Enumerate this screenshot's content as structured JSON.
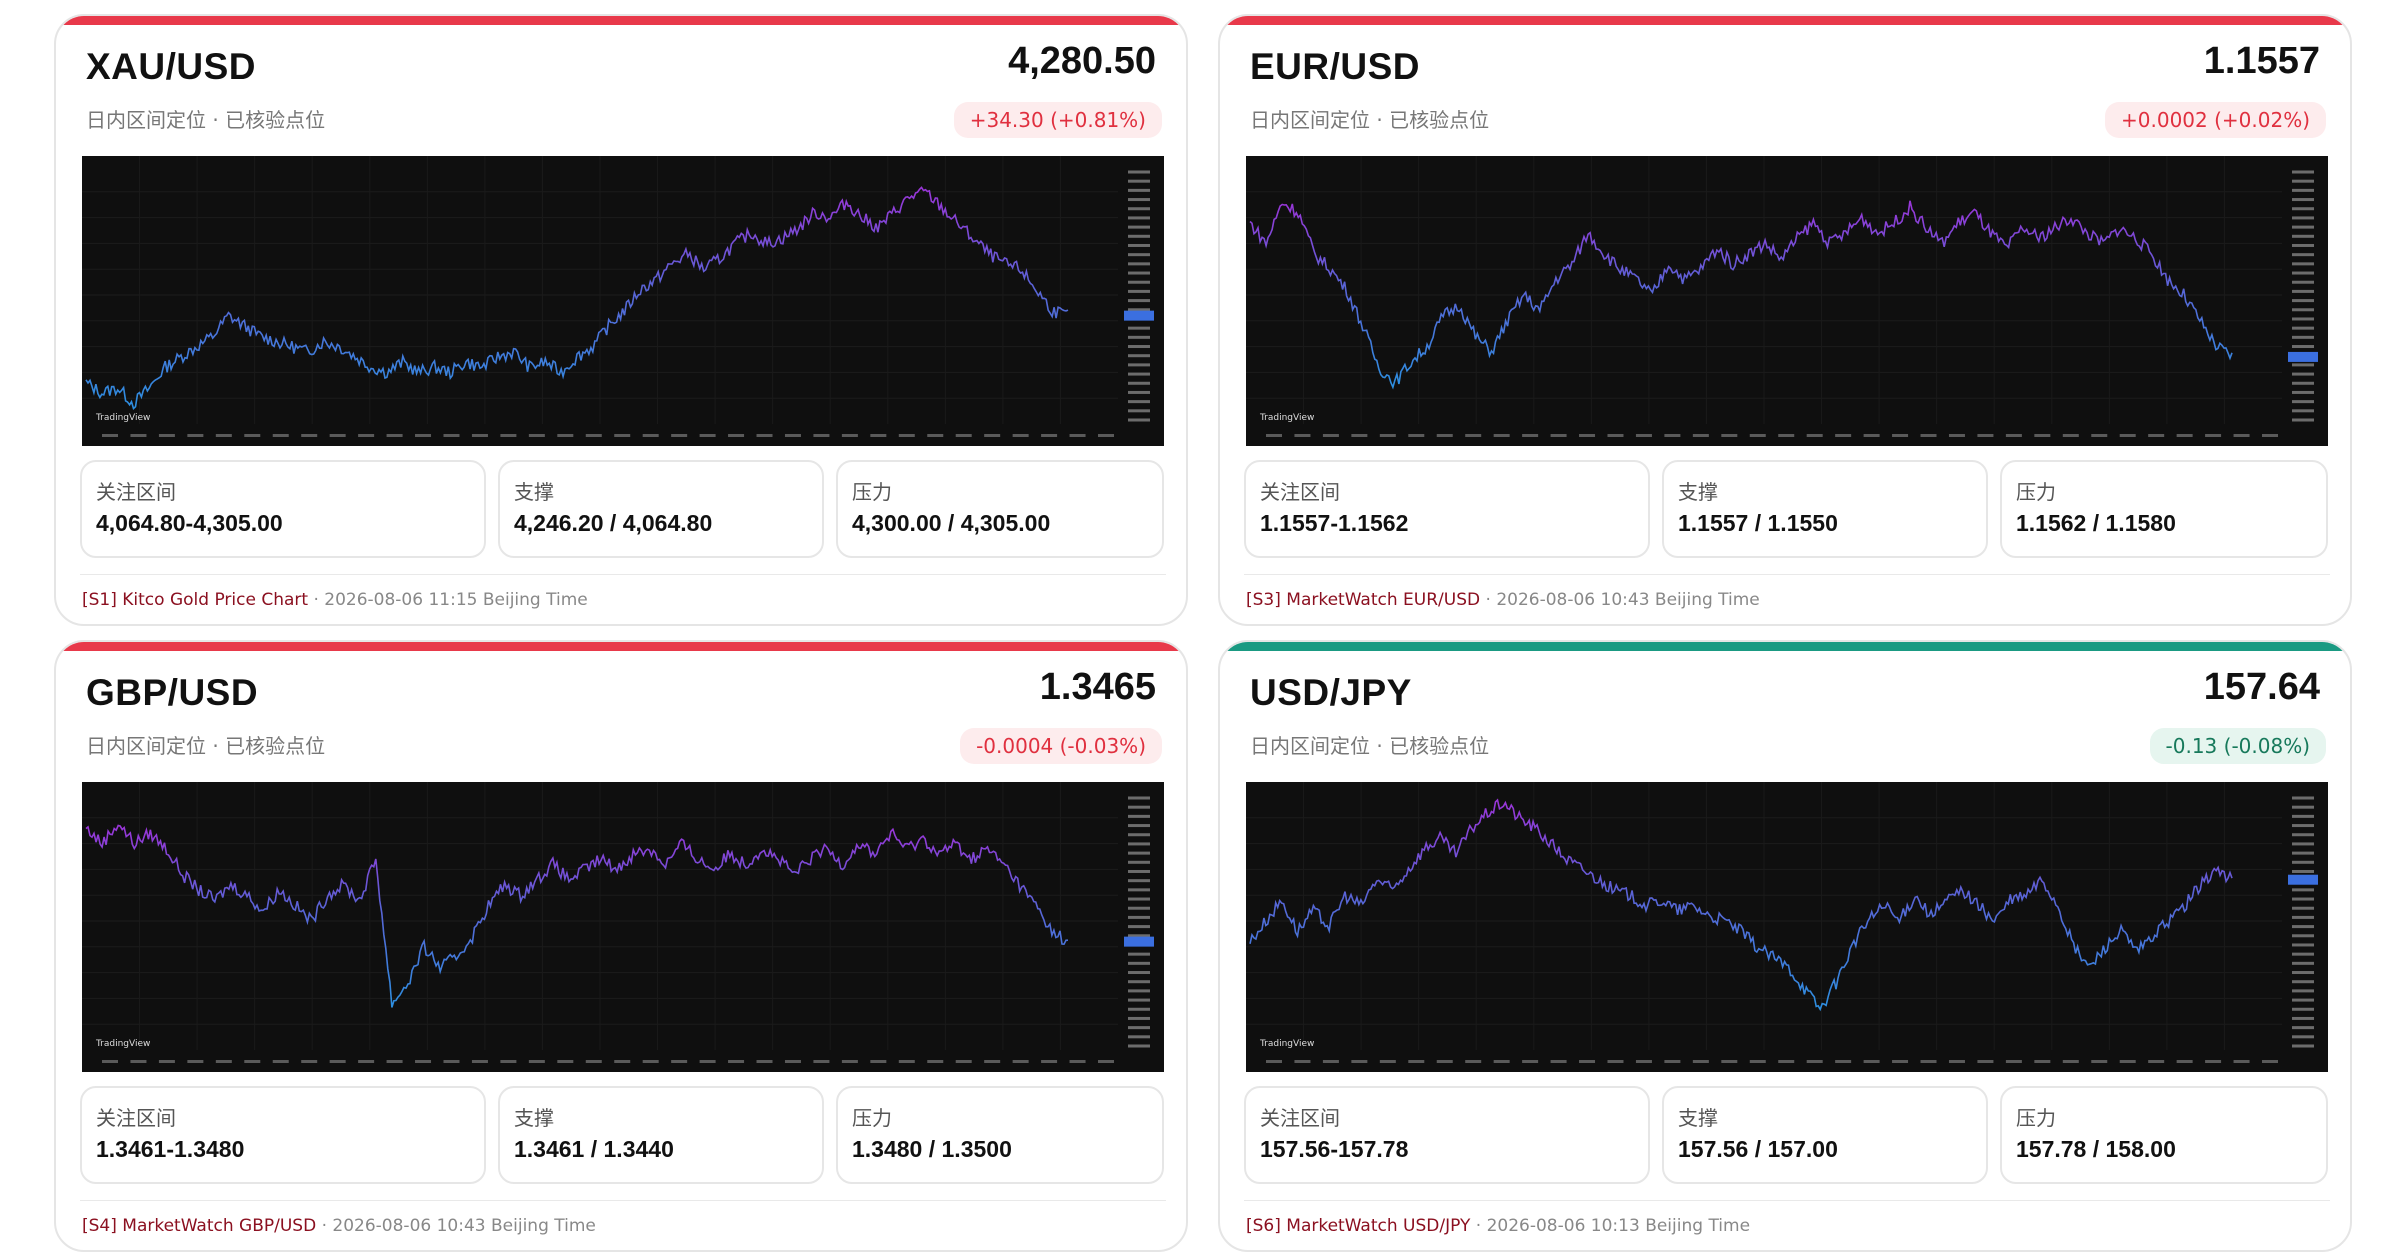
{
  "cards": [
    {
      "pair": "XAU/USD",
      "subtitle": "日内区间定位 · 已核验点位",
      "price": "4,280.50",
      "change": "+34.30 (+0.81%)",
      "change_dir": "negative-style",
      "accent": "#e8394a",
      "levels": [
        {
          "label": "关注区间",
          "value": "4,064.80-4,305.00"
        },
        {
          "label": "支撑",
          "value": "4,246.20 / 4,064.80"
        },
        {
          "label": "压力",
          "value": "4,300.00 / 4,305.00"
        }
      ],
      "source": {
        "tag": "[S1] Kitco Gold Price Chart",
        "sep": " · ",
        "time": "2026-08-06 11:15 Beijing Time"
      },
      "chart_data": {
        "type": "line",
        "logo": "TradingView",
        "series": [
          0.16,
          0.12,
          0.14,
          0.08,
          0.14,
          0.22,
          0.26,
          0.3,
          0.34,
          0.42,
          0.38,
          0.34,
          0.32,
          0.3,
          0.28,
          0.32,
          0.3,
          0.26,
          0.22,
          0.2,
          0.24,
          0.2,
          0.22,
          0.2,
          0.24,
          0.22,
          0.26,
          0.28,
          0.22,
          0.24,
          0.2,
          0.26,
          0.3,
          0.38,
          0.44,
          0.52,
          0.56,
          0.62,
          0.66,
          0.6,
          0.64,
          0.7,
          0.74,
          0.7,
          0.72,
          0.76,
          0.82,
          0.8,
          0.86,
          0.8,
          0.76,
          0.82,
          0.88,
          0.9,
          0.84,
          0.78,
          0.72,
          0.66,
          0.62,
          0.6,
          0.52,
          0.44,
          0.42
        ]
      }
    },
    {
      "pair": "EUR/USD",
      "subtitle": "日内区间定位 · 已核验点位",
      "price": "1.1557",
      "change": "+0.0002 (+0.02%)",
      "change_dir": "negative-style",
      "accent": "#e8394a",
      "levels": [
        {
          "label": "关注区间",
          "value": "1.1557-1.1562"
        },
        {
          "label": "支撑",
          "value": "1.1557 / 1.1550"
        },
        {
          "label": "压力",
          "value": "1.1562 / 1.1580"
        }
      ],
      "source": {
        "tag": "[S3] MarketWatch EUR/USD",
        "sep": " · ",
        "time": "2026-08-06 10:43 Beijing Time"
      },
      "chart_data": {
        "type": "line",
        "logo": "TradingView",
        "series": [
          0.78,
          0.7,
          0.86,
          0.82,
          0.66,
          0.6,
          0.52,
          0.38,
          0.22,
          0.16,
          0.24,
          0.3,
          0.42,
          0.46,
          0.34,
          0.28,
          0.4,
          0.5,
          0.44,
          0.56,
          0.62,
          0.74,
          0.66,
          0.6,
          0.56,
          0.5,
          0.62,
          0.56,
          0.6,
          0.68,
          0.62,
          0.66,
          0.7,
          0.64,
          0.72,
          0.78,
          0.7,
          0.74,
          0.8,
          0.74,
          0.78,
          0.84,
          0.76,
          0.7,
          0.78,
          0.82,
          0.74,
          0.68,
          0.76,
          0.72,
          0.76,
          0.8,
          0.74,
          0.7,
          0.76,
          0.72,
          0.66,
          0.56,
          0.5,
          0.4,
          0.3,
          0.26
        ]
      }
    },
    {
      "pair": "GBP/USD",
      "subtitle": "日内区间定位 · 已核验点位",
      "price": "1.3465",
      "change": "-0.0004 (-0.03%)",
      "change_dir": "negative-style",
      "accent": "#e8394a",
      "levels": [
        {
          "label": "关注区间",
          "value": "1.3461-1.3480"
        },
        {
          "label": "支撑",
          "value": "1.3461 / 1.3440"
        },
        {
          "label": "压力",
          "value": "1.3480 / 1.3500"
        }
      ],
      "source": {
        "tag": "[S4] MarketWatch GBP/USD",
        "sep": " · ",
        "time": "2026-08-06 10:43 Beijing Time"
      },
      "chart_data": {
        "type": "line",
        "logo": "TradingView",
        "series": [
          0.86,
          0.8,
          0.88,
          0.8,
          0.84,
          0.78,
          0.68,
          0.62,
          0.58,
          0.64,
          0.6,
          0.54,
          0.62,
          0.56,
          0.5,
          0.6,
          0.64,
          0.58,
          0.74,
          0.18,
          0.26,
          0.4,
          0.32,
          0.36,
          0.44,
          0.56,
          0.64,
          0.6,
          0.66,
          0.72,
          0.66,
          0.7,
          0.74,
          0.7,
          0.76,
          0.78,
          0.72,
          0.8,
          0.74,
          0.7,
          0.76,
          0.72,
          0.78,
          0.74,
          0.68,
          0.74,
          0.78,
          0.72,
          0.8,
          0.76,
          0.84,
          0.78,
          0.82,
          0.76,
          0.8,
          0.74,
          0.78,
          0.72,
          0.64,
          0.56,
          0.46,
          0.42
        ]
      }
    },
    {
      "pair": "USD/JPY",
      "subtitle": "日内区间定位 · 已核验点位",
      "price": "157.64",
      "change": "-0.13 (-0.08%)",
      "change_dir": "positive-style",
      "accent": "#1a9a82",
      "levels": [
        {
          "label": "关注区间",
          "value": "157.56-157.78"
        },
        {
          "label": "支撑",
          "value": "157.56 / 157.00"
        },
        {
          "label": "压力",
          "value": "157.78 / 158.00"
        }
      ],
      "source": {
        "tag": "[S6] MarketWatch USD/JPY",
        "sep": " · ",
        "time": "2026-08-06 10:13 Beijing Time"
      },
      "chart_data": {
        "type": "line",
        "logo": "TradingView",
        "series": [
          0.42,
          0.5,
          0.58,
          0.46,
          0.54,
          0.48,
          0.6,
          0.56,
          0.66,
          0.62,
          0.7,
          0.78,
          0.82,
          0.76,
          0.86,
          0.92,
          0.96,
          0.9,
          0.86,
          0.8,
          0.74,
          0.7,
          0.66,
          0.62,
          0.6,
          0.56,
          0.58,
          0.54,
          0.56,
          0.52,
          0.5,
          0.46,
          0.4,
          0.36,
          0.32,
          0.24,
          0.16,
          0.26,
          0.4,
          0.5,
          0.56,
          0.5,
          0.6,
          0.52,
          0.58,
          0.62,
          0.56,
          0.5,
          0.58,
          0.6,
          0.66,
          0.56,
          0.4,
          0.32,
          0.4,
          0.46,
          0.38,
          0.44,
          0.5,
          0.56,
          0.64,
          0.7,
          0.66
        ]
      }
    }
  ]
}
